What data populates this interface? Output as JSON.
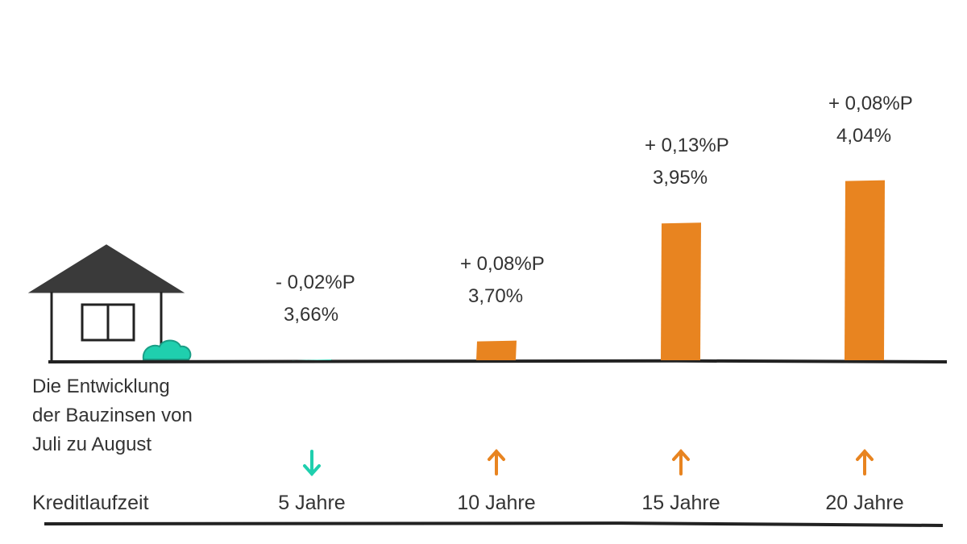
{
  "description": [
    "Die Entwicklung",
    "der Bauzinsen von",
    "Juli zu August"
  ],
  "axis_label": "Kreditlaufzeit",
  "colors": {
    "down": "#1fcfae",
    "up": "#e88420",
    "ink": "#222222",
    "house": "#3a3a3a",
    "text": "#333333"
  },
  "icons": {
    "house": "house-icon",
    "down": "arrow-down-icon",
    "up": "arrow-up-icon"
  },
  "chart_data": {
    "type": "bar",
    "categories": [
      "5 Jahre",
      "10 Jahre",
      "15 Jahre",
      "20 Jahre"
    ],
    "values": [
      3.66,
      3.7,
      3.95,
      4.04
    ],
    "value_labels": [
      "3,66%",
      "3,70%",
      "3,95%",
      "4,04%"
    ],
    "change_labels": [
      "- 0,02%P",
      "+ 0,08%P",
      "+ 0,13%P",
      "+ 0,08%P"
    ],
    "change_values": [
      -0.02,
      0.08,
      0.13,
      0.08
    ],
    "direction": [
      "down",
      "up",
      "up",
      "up"
    ]
  }
}
